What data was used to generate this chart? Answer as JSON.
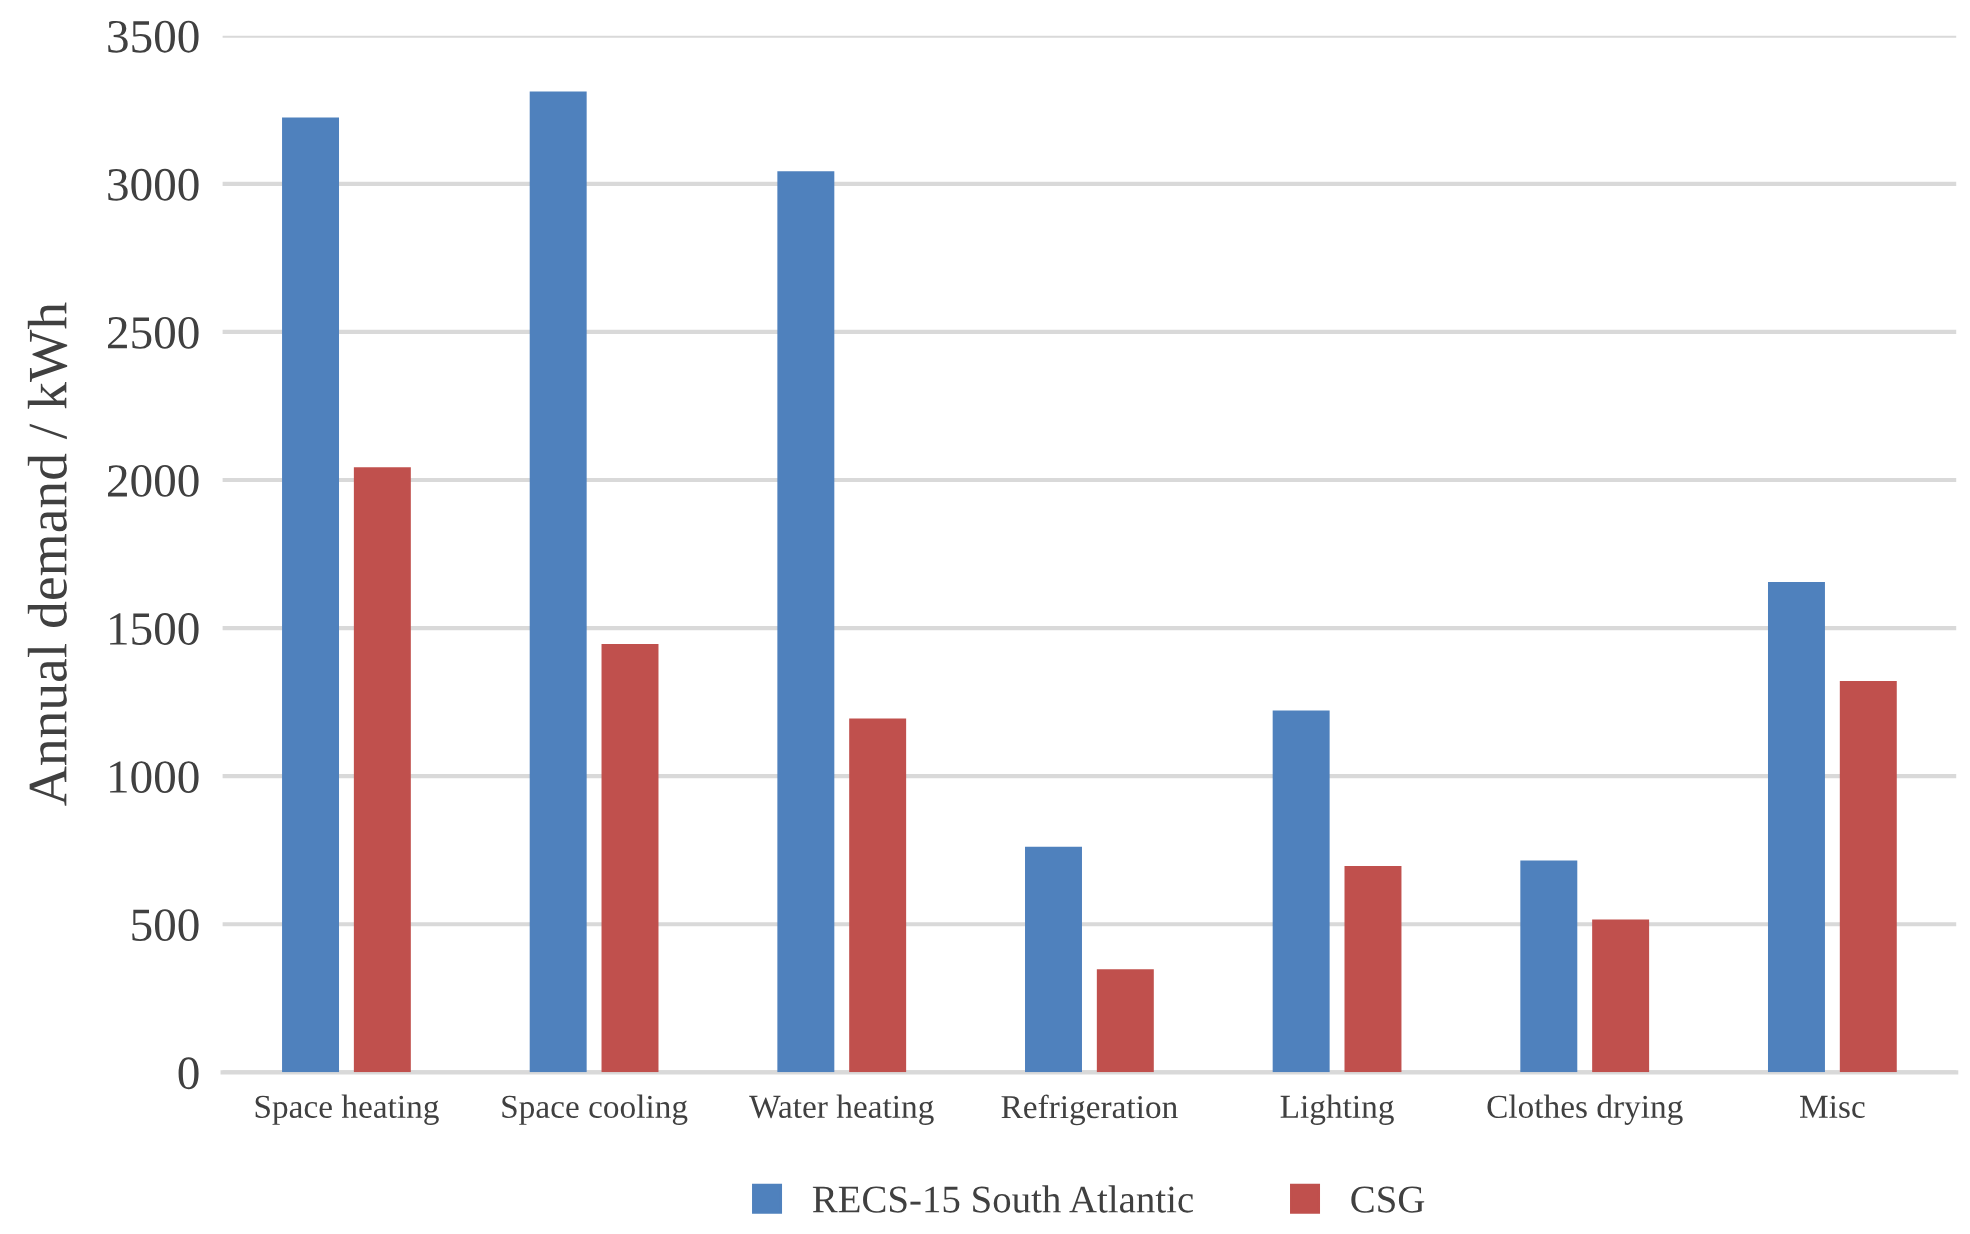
{
  "chart_data": {
    "type": "bar",
    "ylabel": "Annual demand / kWh",
    "categories": [
      "Space heating",
      "Space cooling",
      "Water heating",
      "Refrigeration",
      "Lighting",
      "Clothes drying",
      "Misc"
    ],
    "series": [
      {
        "name": "RECS-15 South Atlantic",
        "color": "#4f81bd",
        "values": [
          3224,
          3312,
          3043,
          762,
          1222,
          715,
          1656
        ]
      },
      {
        "name": "CSG",
        "color": "#c0504d",
        "values": [
          2043,
          1446,
          1195,
          348,
          697,
          516,
          1321
        ]
      }
    ],
    "ylim": [
      0,
      3500
    ],
    "yticks": [
      0,
      500,
      1000,
      1500,
      2000,
      2500,
      3000,
      3500
    ],
    "grid": "y",
    "legend": "bottom"
  }
}
